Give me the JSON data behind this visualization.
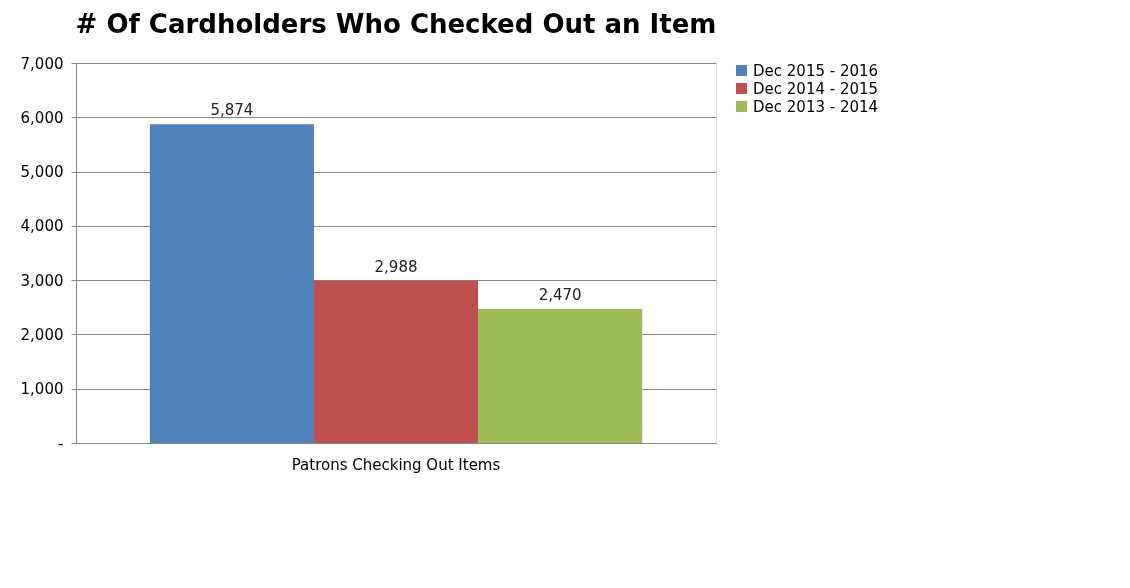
{
  "chart_data": {
    "type": "bar",
    "title": "# Of Cardholders Who Checked Out an Item",
    "categories": [
      "Patrons Checking Out Items"
    ],
    "series": [
      {
        "name": "Dec 2015 - 2016",
        "color": "#4f81bd",
        "values": [
          5874
        ],
        "value_labels": [
          "5,874"
        ]
      },
      {
        "name": "Dec 2014 - 2015",
        "color": "#c0504d",
        "values": [
          2988
        ],
        "value_labels": [
          "2,988"
        ]
      },
      {
        "name": "Dec 2013 - 2014",
        "color": "#9bbb59",
        "values": [
          2470
        ],
        "value_labels": [
          "2,470"
        ]
      }
    ],
    "ylim": [
      0,
      7000
    ],
    "yticks": [
      {
        "value": 0,
        "label": "-"
      },
      {
        "value": 1000,
        "label": "1,000"
      },
      {
        "value": 2000,
        "label": "2,000"
      },
      {
        "value": 3000,
        "label": "3,000"
      },
      {
        "value": 4000,
        "label": "4,000"
      },
      {
        "value": 5000,
        "label": "5,000"
      },
      {
        "value": 6000,
        "label": "6,000"
      },
      {
        "value": 7000,
        "label": "7,000"
      }
    ],
    "grid": "y",
    "legend": "right"
  }
}
